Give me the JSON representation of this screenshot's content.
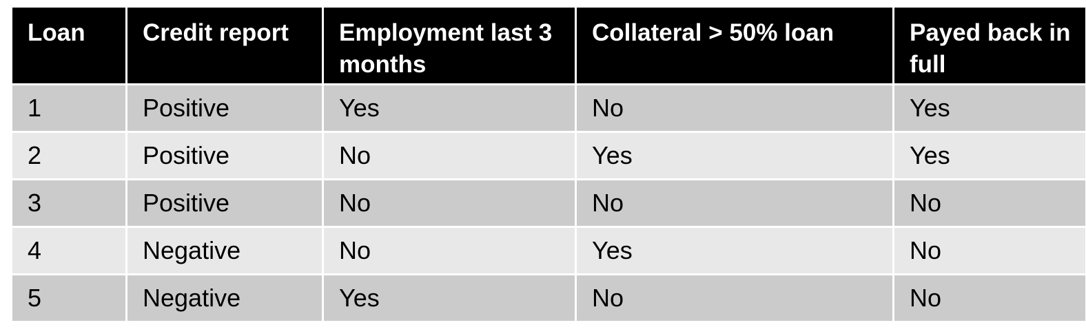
{
  "table": {
    "headers": [
      "Loan",
      "Credit report",
      "Employment last 3 months",
      "Collateral > 50% loan",
      "Payed back in full"
    ],
    "rows": [
      [
        "1",
        "Positive",
        "Yes",
        "No",
        "Yes"
      ],
      [
        "2",
        "Positive",
        "No",
        "Yes",
        "Yes"
      ],
      [
        "3",
        "Positive",
        "No",
        "No",
        "No"
      ],
      [
        "4",
        "Negative",
        "No",
        "Yes",
        "No"
      ],
      [
        "5",
        "Negative",
        "Yes",
        "No",
        "No"
      ]
    ]
  }
}
